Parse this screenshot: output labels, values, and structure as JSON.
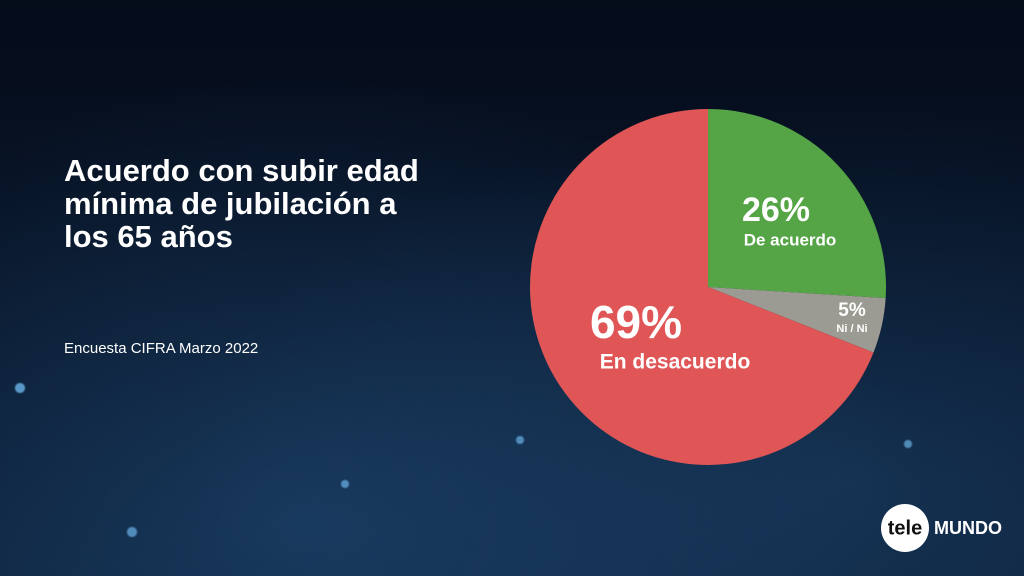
{
  "chart_data": {
    "type": "pie",
    "title": "Acuerdo con subir edad mínima de jubilación a los 65 años",
    "subtitle": "Encuesta CIFRA Marzo 2022",
    "categories": [
      "De acuerdo",
      "Ni / Ni",
      "En desacuerdo"
    ],
    "values": [
      26,
      5,
      69
    ],
    "value_labels": [
      "26%",
      "5%",
      "69%"
    ],
    "colors": [
      "#55a547",
      "#9c9b93",
      "#e05656"
    ],
    "brand": {
      "left": "tele",
      "right": "MUNDO"
    }
  }
}
